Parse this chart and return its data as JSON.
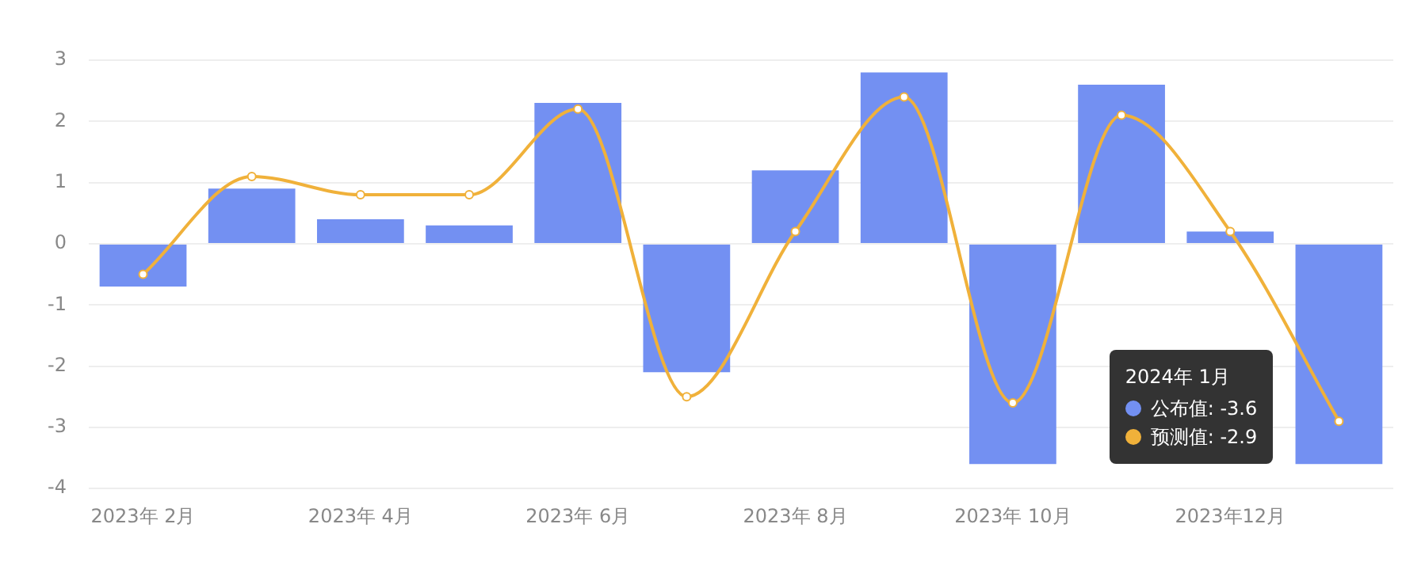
{
  "chart_data": {
    "type": "bar",
    "categories": [
      "2023年 2月",
      null,
      "2023年 4月",
      null,
      "2023年 6月",
      null,
      "2023年 8月",
      null,
      "2023年 10月",
      null,
      "2023年12月",
      null
    ],
    "series": [
      {
        "name": "公布值:",
        "color": "#7390f2",
        "values": [
          -0.7,
          0.9,
          0.4,
          0.3,
          2.3,
          -2.1,
          1.2,
          2.8,
          -3.6,
          2.6,
          0.2,
          -3.6
        ]
      },
      {
        "name": "预测值:",
        "type": "line",
        "color": "#f0b13a",
        "marker": "circle",
        "values": [
          -0.5,
          1.1,
          0.8,
          0.8,
          2.2,
          -2.5,
          0.2,
          2.4,
          -2.6,
          2.1,
          0.2,
          -2.9
        ]
      }
    ],
    "legend_title": "2024年 1月",
    "annotations": [
      "-3.6",
      "-2.9"
    ],
    "legend": "bottom right",
    "ylim": [
      -4,
      3
    ],
    "yticks": [
      -4,
      -3,
      -2,
      -1,
      0,
      1,
      2,
      3
    ],
    "grid": "y"
  }
}
